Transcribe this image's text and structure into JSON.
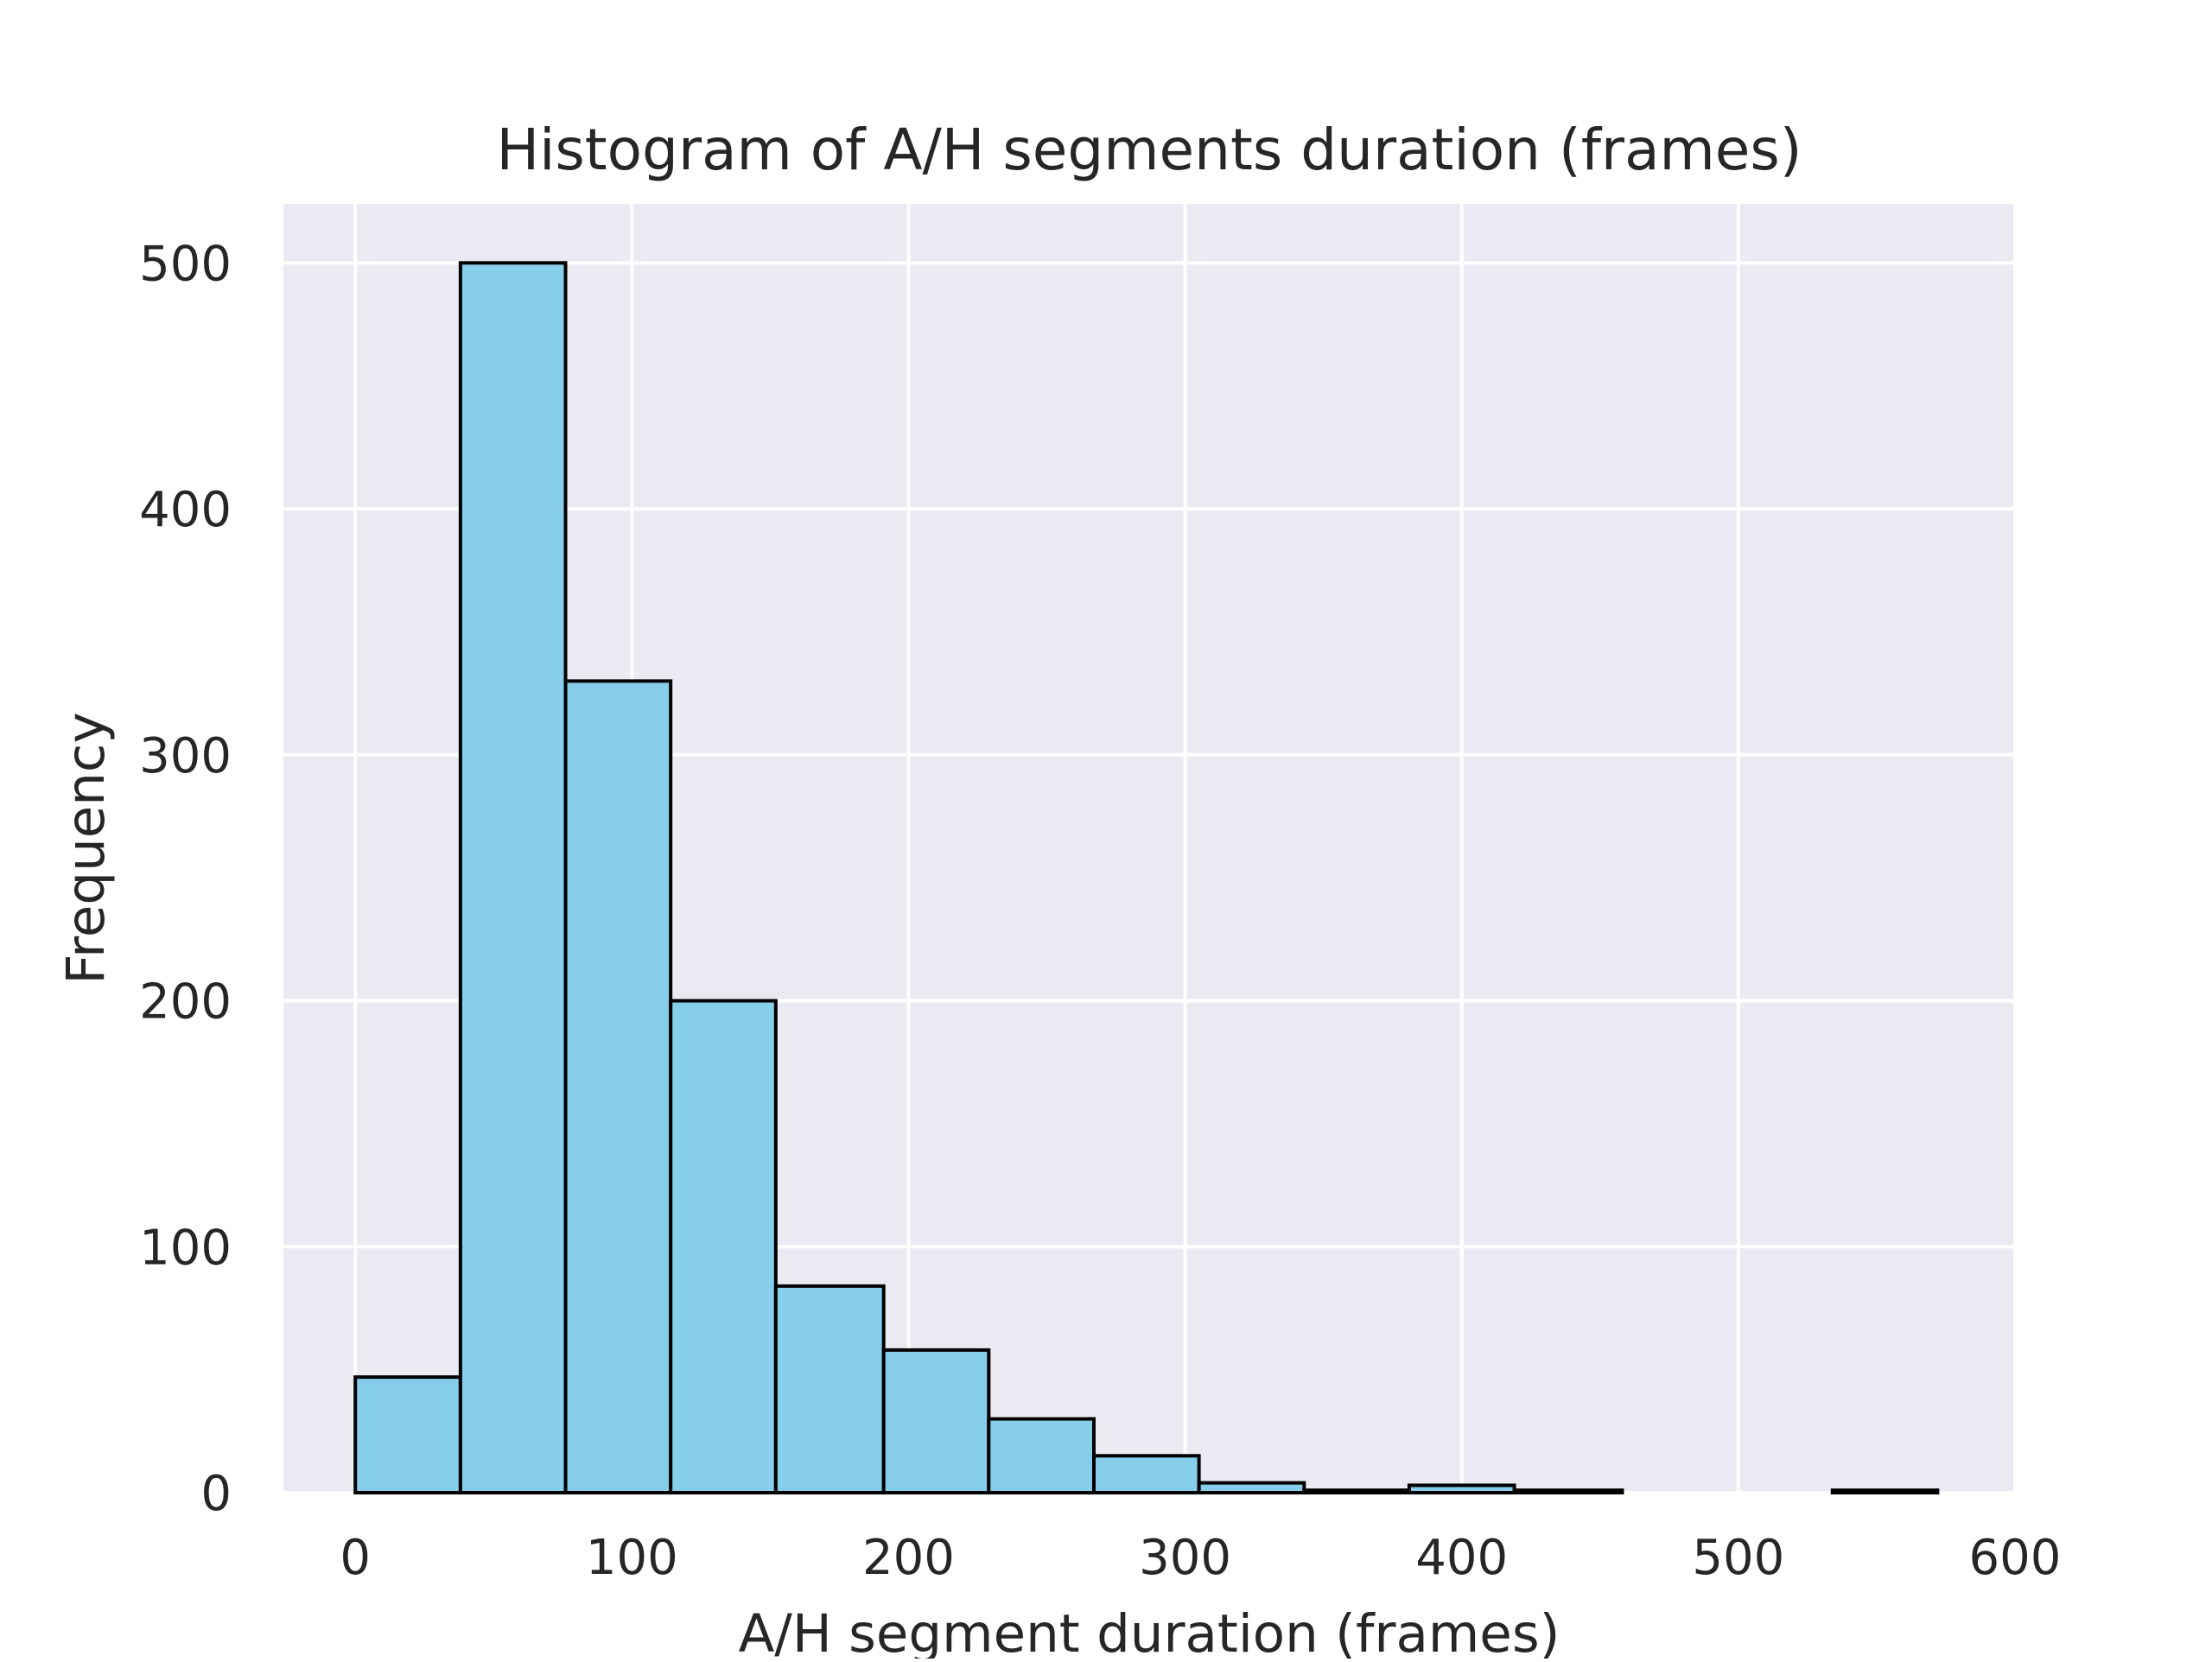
{
  "chart_data": {
    "type": "bar",
    "title": "Histogram of A/H segments duration (frames)",
    "xlabel": "A/H segment duration (frames)",
    "ylabel": "Frequency",
    "xlim": [
      -26,
      600
    ],
    "ylim": [
      0,
      524
    ],
    "xticks": [
      0,
      100,
      200,
      300,
      400,
      500,
      600
    ],
    "yticks": [
      0,
      100,
      200,
      300,
      400,
      500
    ],
    "grid": true,
    "legend": "none",
    "bins": [
      {
        "x0": 0,
        "x1": 38,
        "count": 47
      },
      {
        "x0": 38,
        "x1": 76,
        "count": 500
      },
      {
        "x0": 76,
        "x1": 114,
        "count": 330
      },
      {
        "x0": 114,
        "x1": 152,
        "count": 200
      },
      {
        "x0": 152,
        "x1": 191,
        "count": 84
      },
      {
        "x0": 191,
        "x1": 229,
        "count": 58
      },
      {
        "x0": 229,
        "x1": 267,
        "count": 30
      },
      {
        "x0": 267,
        "x1": 305,
        "count": 15
      },
      {
        "x0": 305,
        "x1": 343,
        "count": 4
      },
      {
        "x0": 343,
        "x1": 381,
        "count": 1
      },
      {
        "x0": 381,
        "x1": 419,
        "count": 3
      },
      {
        "x0": 419,
        "x1": 458,
        "count": 1
      },
      {
        "x0": 458,
        "x1": 496,
        "count": 0
      },
      {
        "x0": 496,
        "x1": 534,
        "count": 0
      },
      {
        "x0": 534,
        "x1": 572,
        "count": 1
      }
    ],
    "colors": {
      "bar_fill": "#87ceeb",
      "bar_edge": "#000000",
      "plot_background": "#eaeaf2",
      "grid": "#ffffff",
      "text": "#262626"
    }
  }
}
